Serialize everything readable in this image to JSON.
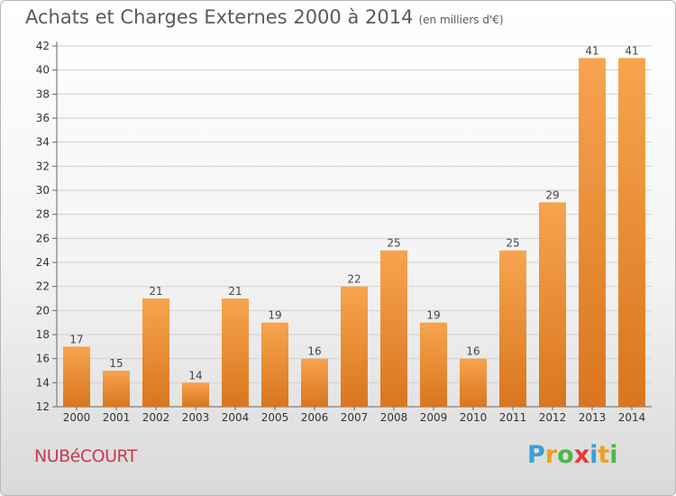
{
  "header": {
    "title": "Achats et Charges Externes 2000 à 2014",
    "subtitle": "(en milliers d'€)"
  },
  "footer": {
    "location": "NUBéCOURT",
    "brand": [
      "P",
      "r",
      "o",
      "x",
      "i",
      "t",
      "i"
    ],
    "brand_colors": [
      "#3aa0d8",
      "#f0a020",
      "#4cb848",
      "#e03c3c",
      "#3aa0d8",
      "#f0a020",
      "#4cb848"
    ]
  },
  "colors": {
    "bar_top": "#f7a44e",
    "bar_bottom": "#d9761f",
    "grid": "#d0d0d0"
  },
  "chart_data": {
    "type": "bar",
    "title": "Achats et Charges Externes 2000 à 2014",
    "subtitle": "(en milliers d'€)",
    "categories": [
      "2000",
      "2001",
      "2002",
      "2003",
      "2004",
      "2005",
      "2006",
      "2007",
      "2008",
      "2009",
      "2010",
      "2011",
      "2012",
      "2013",
      "2014"
    ],
    "values": [
      17,
      15,
      21,
      14,
      21,
      19,
      16,
      22,
      25,
      19,
      16,
      25,
      29,
      41,
      41
    ],
    "ylim": [
      12,
      42
    ],
    "yticks": [
      12,
      14,
      16,
      18,
      20,
      22,
      24,
      26,
      28,
      30,
      32,
      34,
      36,
      38,
      40,
      42
    ],
    "grid": true,
    "xlabel": "",
    "ylabel": ""
  }
}
